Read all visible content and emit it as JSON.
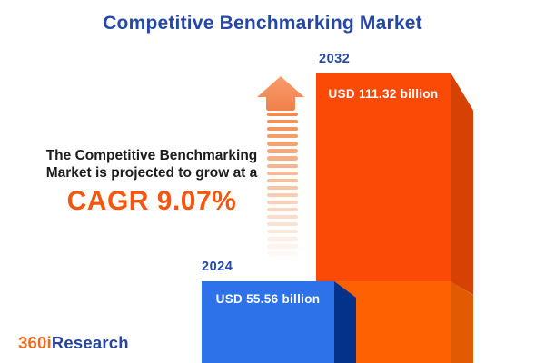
{
  "page": {
    "title": "Competitive Benchmarking Market"
  },
  "insight": {
    "line1": "The Competitive Benchmarking",
    "line2": "Market is projected to grow at a",
    "cagr": "CAGR 9.07%"
  },
  "bars": {
    "y2024": {
      "year": "2024",
      "value_label": "USD 55.56 billion"
    },
    "y2032": {
      "year": "2032",
      "value_label": "USD 111.32 billion"
    }
  },
  "logo": {
    "part1": "360i",
    "part2": "Research"
  },
  "colors": {
    "title_blue": "#2547A8",
    "cagr_orange": "#F4570D",
    "bar2032_front_top": "#FB4A06",
    "bar2032_front_bottom": "#FD6102",
    "bar2032_side_top": "#D84104",
    "bar2032_side_bottom": "#E25A02",
    "bar2024_front": "#2D72E8",
    "bar2024_side": "#04318A",
    "arrow_orange": "#F28B50",
    "logo_orange": "#F26A21",
    "logo_blue": "#24449F",
    "background": "#FFFFFF"
  },
  "chart_data": {
    "type": "bar",
    "title": "Competitive Benchmarking Market",
    "categories": [
      "2024",
      "2032"
    ],
    "values": [
      55.56,
      111.32
    ],
    "unit": "USD billion",
    "bar_labels": [
      "USD 55.56 billion",
      "USD 111.32 billion"
    ],
    "cagr_percent": 9.07,
    "annotations": [
      "The Competitive Benchmarking Market is projected to grow at a CAGR 9.07%"
    ],
    "legend": "off",
    "grid": "off",
    "orientation": "vertical",
    "style": "3d-infographic, growth arrow between annotation and bars"
  }
}
